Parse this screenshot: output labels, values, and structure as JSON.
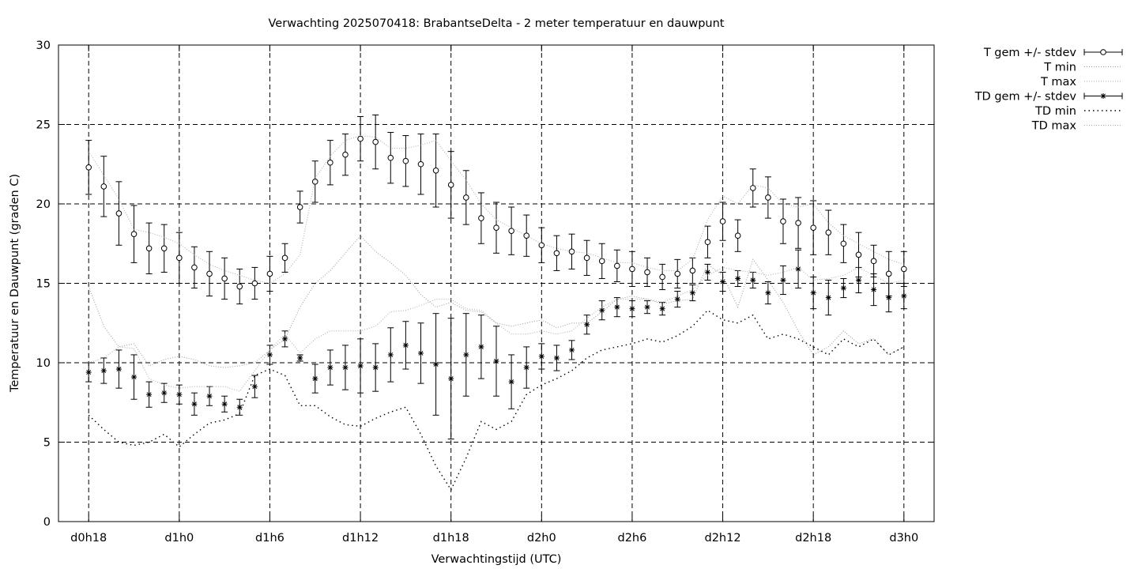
{
  "chart_data": {
    "type": "line",
    "title": "Verwachting 2025070418: BrabantseDelta - 2 meter temperatuur en dauwpunt",
    "xlabel": "Verwachtingstijd (UTC)",
    "ylabel": "Temperatuur en Dauwpunt (graden C)",
    "x_unit": "hours",
    "xlim": [
      -2,
      56
    ],
    "ylim": [
      0,
      30
    ],
    "yticks": [
      0,
      5,
      10,
      15,
      20,
      25,
      30
    ],
    "xticks": [
      {
        "x": 0,
        "label": "d0h18"
      },
      {
        "x": 6,
        "label": "d1h0"
      },
      {
        "x": 12,
        "label": "d1h6"
      },
      {
        "x": 18,
        "label": "d1h12"
      },
      {
        "x": 24,
        "label": "d1h18"
      },
      {
        "x": 30,
        "label": "d2h0"
      },
      {
        "x": 36,
        "label": "d2h6"
      },
      {
        "x": 42,
        "label": "d2h12"
      },
      {
        "x": 48,
        "label": "d2h18"
      },
      {
        "x": 54,
        "label": "d3h0"
      }
    ],
    "grid": true,
    "legend_position": "outside-right-top",
    "series": [
      {
        "name": "T gem +/- stdev",
        "style": "errorbar-open-circle",
        "color": "#000000",
        "x": [
          0,
          1,
          2,
          3,
          4,
          5,
          6,
          7,
          8,
          9,
          10,
          11,
          12,
          13,
          14,
          15,
          16,
          17,
          18,
          19,
          20,
          21,
          22,
          23,
          24,
          25,
          26,
          27,
          28,
          29,
          30,
          31,
          32,
          33,
          34,
          35,
          36,
          37,
          38,
          39,
          40,
          41,
          42,
          43,
          44,
          45,
          46,
          47,
          48,
          49,
          50,
          51,
          52,
          53,
          54
        ],
        "y": [
          22.3,
          21.1,
          19.4,
          18.1,
          17.2,
          17.2,
          16.6,
          16.0,
          15.6,
          15.3,
          14.8,
          15.0,
          15.6,
          16.6,
          19.8,
          21.4,
          22.6,
          23.1,
          24.1,
          23.9,
          22.9,
          22.7,
          22.5,
          22.1,
          21.2,
          20.4,
          19.1,
          18.5,
          18.3,
          18.0,
          17.4,
          16.9,
          17.0,
          16.6,
          16.4,
          16.1,
          15.9,
          15.7,
          15.4,
          15.6,
          15.8,
          17.6,
          18.9,
          18.0,
          21.0,
          20.4,
          18.9,
          18.8,
          18.5,
          18.2,
          17.5,
          16.8,
          16.4,
          15.6,
          15.9
        ],
        "stdev": [
          1.7,
          1.9,
          2.0,
          1.8,
          1.6,
          1.5,
          1.6,
          1.3,
          1.4,
          1.3,
          1.1,
          1.0,
          1.1,
          0.9,
          1.0,
          1.3,
          1.4,
          1.3,
          1.4,
          1.7,
          1.6,
          1.6,
          1.9,
          2.3,
          2.1,
          1.7,
          1.6,
          1.6,
          1.5,
          1.3,
          1.1,
          1.1,
          1.1,
          1.1,
          1.1,
          1.0,
          1.1,
          0.9,
          0.8,
          0.9,
          0.8,
          1.0,
          1.2,
          1.0,
          1.2,
          1.3,
          1.4,
          1.6,
          1.7,
          1.4,
          1.2,
          1.4,
          1.0,
          1.4,
          1.1
        ]
      },
      {
        "name": "T min",
        "style": "dotted-fine",
        "color": "#999999",
        "x": [
          0,
          1,
          2,
          3,
          4,
          5,
          6,
          7,
          8,
          9,
          10,
          11,
          12,
          13,
          14,
          15,
          16,
          17,
          18,
          19,
          20,
          21,
          22,
          23,
          24,
          25,
          26,
          27,
          28,
          29,
          30,
          31,
          32,
          33,
          34,
          35,
          36,
          37,
          38,
          39,
          40,
          41,
          42,
          43,
          44,
          45,
          46,
          47,
          48,
          49,
          50,
          51,
          52,
          53,
          54
        ],
        "y": [
          14.8,
          12.3,
          11.0,
          11.2,
          9.8,
          10.2,
          10.4,
          10.2,
          9.8,
          9.7,
          9.8,
          10.0,
          10.8,
          11.5,
          13.5,
          15.0,
          15.8,
          16.9,
          18.0,
          17.0,
          16.3,
          15.5,
          14.3,
          13.5,
          13.8,
          13.3,
          13.2,
          12.5,
          12.3,
          12.5,
          12.7,
          12.2,
          12.5,
          12.5,
          13.2,
          14.0,
          14.2,
          14.0,
          13.7,
          13.9,
          14.0,
          16.2,
          15.5,
          13.5,
          16.5,
          15.2,
          13.8,
          12.0,
          10.5,
          11.0,
          12.0,
          11.2,
          11.5,
          10.5,
          11.0
        ]
      },
      {
        "name": "T max",
        "style": "dotted-fine",
        "color": "#aaaaaa",
        "x": [
          0,
          1,
          2,
          3,
          4,
          5,
          6,
          7,
          8,
          9,
          10,
          11,
          12,
          13,
          14,
          15,
          16,
          17,
          18,
          19,
          20,
          21,
          22,
          23,
          24,
          25,
          26,
          27,
          28,
          29,
          30,
          31,
          32,
          33,
          34,
          35,
          36,
          37,
          38,
          39,
          40,
          41,
          42,
          43,
          44,
          45,
          46,
          47,
          48,
          49,
          50,
          51,
          52,
          53,
          54
        ],
        "y": [
          23.3,
          21.8,
          20.3,
          18.4,
          18.2,
          17.9,
          17.5,
          16.8,
          16.2,
          15.8,
          15.5,
          15.2,
          15.0,
          15.6,
          16.8,
          21.6,
          23.0,
          24.0,
          24.3,
          24.2,
          23.5,
          23.5,
          23.7,
          24.0,
          22.7,
          21.5,
          20.0,
          19.0,
          18.5,
          18.0,
          17.5,
          17.2,
          17.0,
          16.9,
          16.6,
          16.3,
          16.3,
          16.0,
          15.8,
          15.8,
          16.5,
          19.0,
          20.5,
          20.0,
          21.2,
          21.0,
          20.0,
          19.8,
          20.0,
          18.8,
          18.0,
          17.5,
          17.0,
          16.5,
          16.2
        ]
      },
      {
        "name": "TD gem +/- stdev",
        "style": "errorbar-star",
        "color": "#000000",
        "x": [
          0,
          1,
          2,
          3,
          4,
          5,
          6,
          7,
          8,
          9,
          10,
          11,
          12,
          13,
          14,
          15,
          16,
          17,
          18,
          19,
          20,
          21,
          22,
          23,
          24,
          25,
          26,
          27,
          28,
          29,
          30,
          31,
          32,
          33,
          34,
          35,
          36,
          37,
          38,
          39,
          40,
          41,
          42,
          43,
          44,
          45,
          46,
          47,
          48,
          49,
          50,
          51,
          52,
          53,
          54
        ],
        "y": [
          9.4,
          9.5,
          9.6,
          9.1,
          8.0,
          8.1,
          8.0,
          7.4,
          7.9,
          7.4,
          7.2,
          8.5,
          10.5,
          11.5,
          10.3,
          9.0,
          9.7,
          9.7,
          9.8,
          9.7,
          10.5,
          11.1,
          10.6,
          9.9,
          9.0,
          10.5,
          11.0,
          10.1,
          8.8,
          9.7,
          10.4,
          10.3,
          10.8,
          12.4,
          13.3,
          13.5,
          13.4,
          13.5,
          13.4,
          14.0,
          14.4,
          15.7,
          15.1,
          15.3,
          15.2,
          14.4,
          15.2,
          15.9,
          14.4,
          14.1,
          14.7,
          15.2,
          14.6,
          14.1,
          14.2
        ],
        "stdev": [
          0.6,
          0.8,
          1.2,
          1.4,
          0.8,
          0.6,
          0.6,
          0.7,
          0.6,
          0.5,
          0.5,
          0.7,
          0.6,
          0.5,
          0.2,
          0.9,
          1.1,
          1.4,
          1.7,
          1.5,
          1.7,
          1.5,
          1.9,
          3.2,
          3.8,
          2.6,
          2.0,
          2.2,
          1.7,
          1.3,
          0.8,
          0.8,
          0.6,
          0.6,
          0.6,
          0.6,
          0.5,
          0.4,
          0.4,
          0.5,
          0.5,
          0.5,
          0.6,
          0.5,
          0.5,
          0.7,
          0.9,
          1.2,
          1.0,
          1.1,
          0.6,
          0.8,
          1.0,
          0.9,
          0.8
        ]
      },
      {
        "name": "TD min",
        "style": "dotted-coarse",
        "color": "#000000",
        "x": [
          0,
          1,
          2,
          3,
          4,
          5,
          6,
          7,
          8,
          9,
          10,
          11,
          12,
          13,
          14,
          15,
          16,
          17,
          18,
          19,
          20,
          21,
          22,
          23,
          24,
          25,
          26,
          27,
          28,
          29,
          30,
          31,
          32,
          33,
          34,
          35,
          36,
          37,
          38,
          39,
          40,
          41,
          42,
          43,
          44,
          45,
          46,
          47,
          48,
          49,
          50,
          51,
          52,
          53,
          54
        ],
        "y": [
          6.7,
          5.8,
          5.0,
          4.8,
          5.0,
          5.5,
          4.7,
          5.5,
          6.2,
          6.4,
          6.8,
          9.2,
          9.6,
          9.2,
          7.3,
          7.3,
          6.6,
          6.1,
          6.0,
          6.5,
          6.9,
          7.2,
          5.5,
          3.5,
          2.0,
          4.0,
          6.3,
          5.8,
          6.3,
          8.0,
          8.6,
          9.0,
          9.5,
          10.3,
          10.8,
          11.0,
          11.2,
          11.5,
          11.3,
          11.7,
          12.3,
          13.3,
          12.7,
          12.5,
          13.0,
          11.5,
          11.8,
          11.5,
          11.0,
          10.5,
          11.5,
          11.0,
          11.5,
          10.5,
          11.0
        ]
      },
      {
        "name": "TD max",
        "style": "dotted-fine",
        "color": "#aaaaaa",
        "x": [
          0,
          1,
          2,
          3,
          4,
          5,
          6,
          7,
          8,
          9,
          10,
          11,
          12,
          13,
          14,
          15,
          16,
          17,
          18,
          19,
          20,
          21,
          22,
          23,
          24,
          25,
          26,
          27,
          28,
          29,
          30,
          31,
          32,
          33,
          34,
          35,
          36,
          37,
          38,
          39,
          40,
          41,
          42,
          43,
          44,
          45,
          46,
          47,
          48,
          49,
          50,
          51,
          52,
          53,
          54
        ],
        "y": [
          10.0,
          10.3,
          11.0,
          10.9,
          9.0,
          8.6,
          8.4,
          8.5,
          8.5,
          8.5,
          8.2,
          9.5,
          10.8,
          11.8,
          10.6,
          11.5,
          12.0,
          12.0,
          12.0,
          12.3,
          13.2,
          13.3,
          13.6,
          14.0,
          14.0,
          13.4,
          13.3,
          12.5,
          11.8,
          11.8,
          12.0,
          11.8,
          12.0,
          12.8,
          13.5,
          14.0,
          14.0,
          14.0,
          13.8,
          14.2,
          14.6,
          15.5,
          16.0,
          15.8,
          15.7,
          15.5,
          15.7,
          16.0,
          15.2,
          15.3,
          15.5,
          16.0,
          15.5,
          15.0,
          15.2
        ]
      }
    ]
  }
}
